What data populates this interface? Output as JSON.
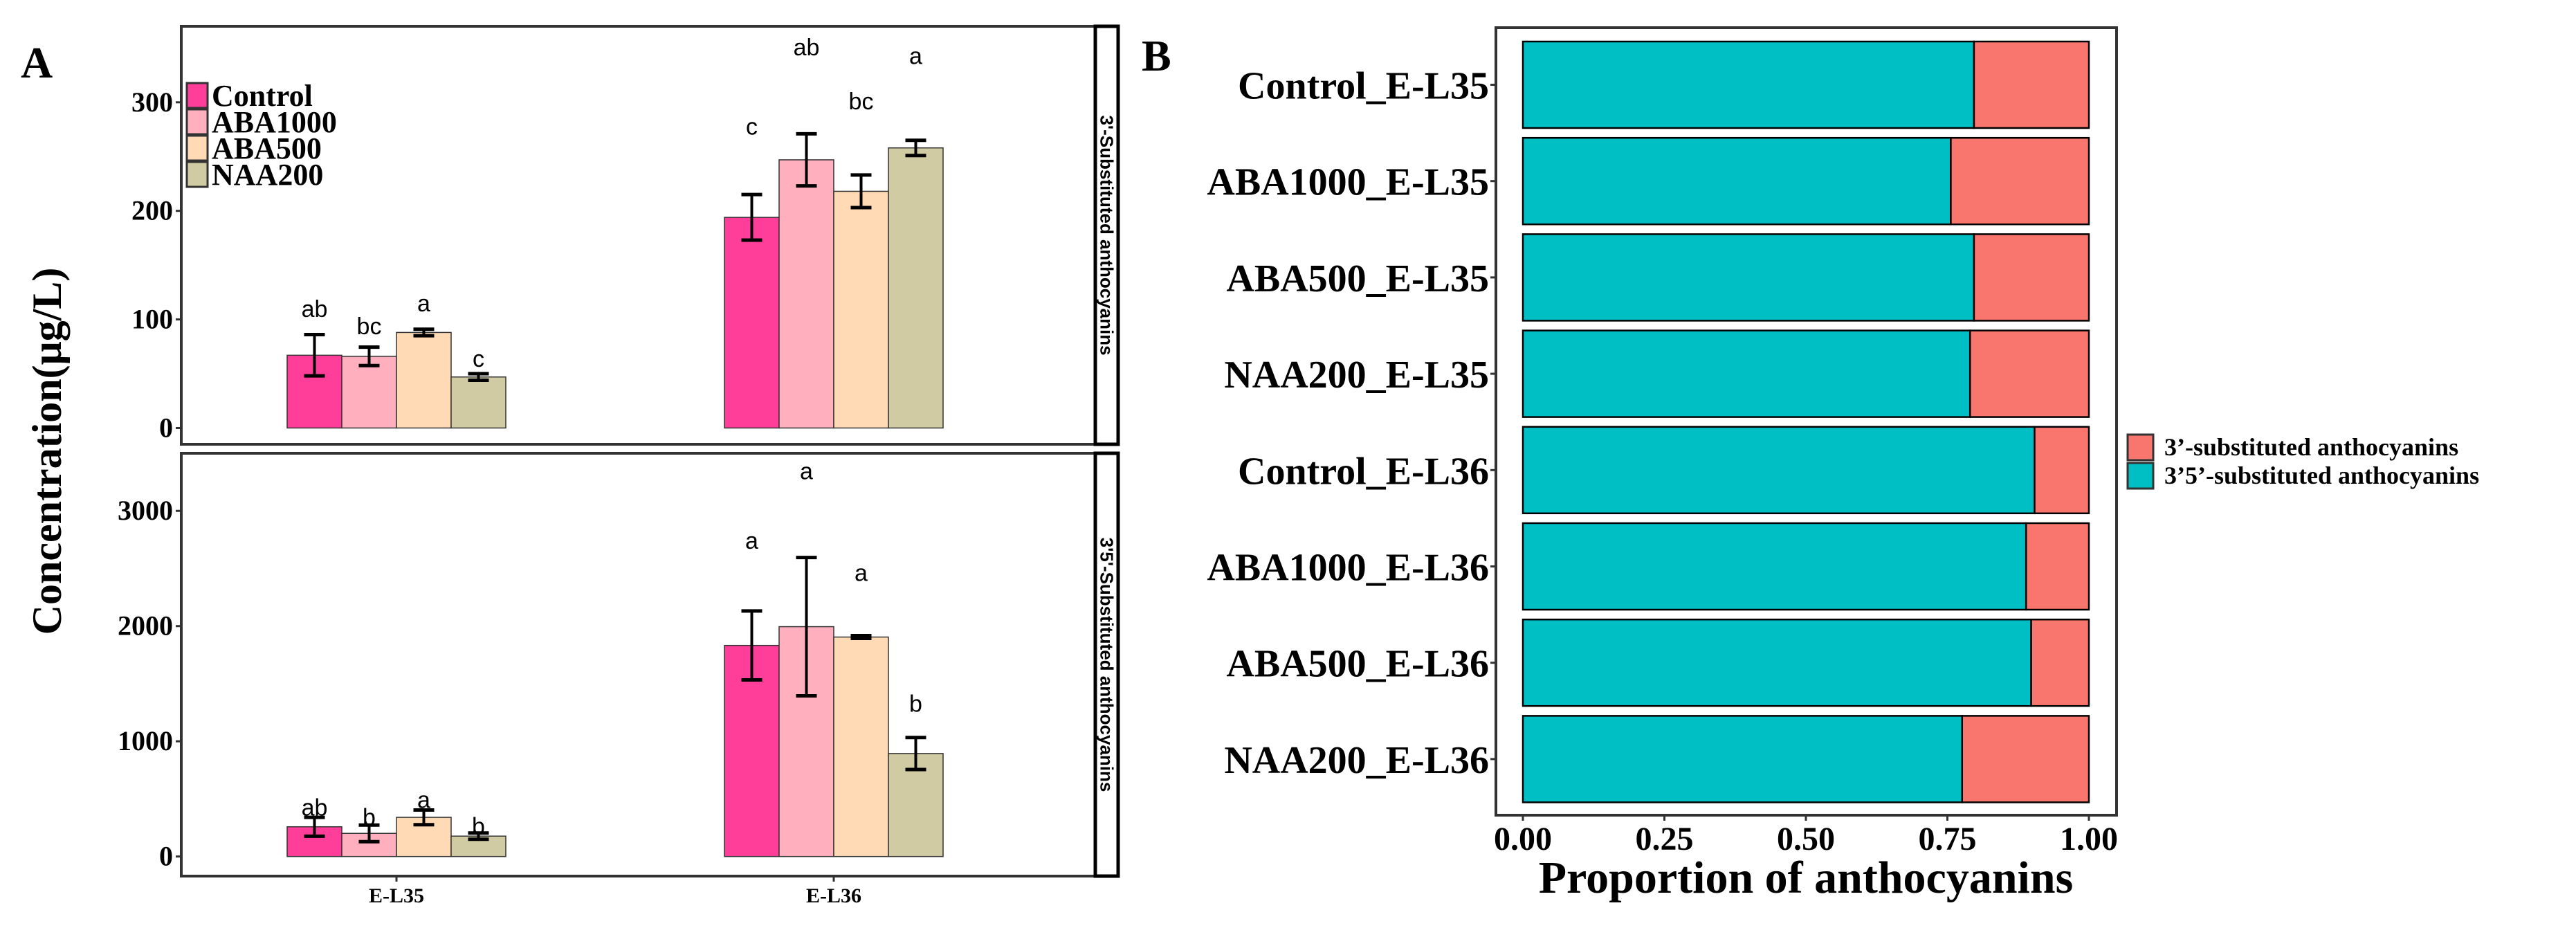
{
  "chart_data": [
    {
      "panel_label": "A",
      "type": "bar",
      "ylabel": "Concentration(μg/L)",
      "categories": [
        "E-L35",
        "E-L36"
      ],
      "legend": {
        "placement": "top-left",
        "entries": [
          "Control",
          "ABA1000",
          "ABA500",
          "NAA200"
        ]
      },
      "colors": {
        "Control": "#FF3E9A",
        "ABA1000": "#FFAFBD",
        "ABA500": "#FFDAB5",
        "NAA200": "#D0CBA2"
      },
      "facets": [
        {
          "strip": "3'-Substituted anthocyanins",
          "ylim": [
            -15,
            370
          ],
          "yticks": [
            0,
            100,
            200,
            300
          ],
          "series": [
            {
              "name": "Control",
              "values": [
                67,
                194
              ],
              "errors": [
                19,
                21
              ],
              "letters": [
                "ab",
                "c"
              ],
              "letter_y": [
                110,
                278
              ]
            },
            {
              "name": "ABA1000",
              "values": [
                66,
                247
              ],
              "errors": [
                8.5,
                24
              ],
              "letters": [
                "bc",
                "ab"
              ],
              "letter_y": [
                94,
                351
              ]
            },
            {
              "name": "ABA500",
              "values": [
                88,
                218
              ],
              "errors": [
                3,
                15
              ],
              "letters": [
                "a",
                "bc"
              ],
              "letter_y": [
                115,
                301
              ]
            },
            {
              "name": "NAA200",
              "values": [
                47,
                258
              ],
              "errors": [
                3,
                7
              ],
              "letters": [
                "c",
                "a"
              ],
              "letter_y": [
                64,
                343
              ]
            }
          ]
        },
        {
          "strip": "3'5'-Substituted anthocyanins",
          "ylim": [
            -170,
            3500
          ],
          "yticks": [
            0,
            1000,
            2000,
            3000
          ],
          "series": [
            {
              "name": "Control",
              "values": [
                258,
                1832
              ],
              "errors": [
                82,
                299
              ],
              "letters": [
                "ab",
                "a"
              ],
              "letter_y": [
                427,
                2742
              ]
            },
            {
              "name": "ABA1000",
              "values": [
                201,
                1995
              ],
              "errors": [
                72,
                600
              ],
              "letters": [
                "b",
                "a"
              ],
              "letter_y": [
                345,
                3348
              ]
            },
            {
              "name": "ABA500",
              "values": [
                340,
                1905
              ],
              "errors": [
                64,
                12
              ],
              "letters": [
                "a",
                "a"
              ],
              "letter_y": [
                495,
                2465
              ]
            },
            {
              "name": "NAA200",
              "values": [
                177,
                894
              ],
              "errors": [
                27,
                139
              ],
              "letters": [
                "b",
                "b"
              ],
              "letter_y": [
                264,
                1329
              ]
            }
          ]
        }
      ]
    },
    {
      "panel_label": "B",
      "type": "bar",
      "orientation": "horizontal-stacked",
      "xlabel": "Proportion of anthocyanins",
      "xlim": [
        0,
        1
      ],
      "xticks": [
        "0.00",
        "0.25",
        "0.50",
        "0.75",
        "1.00"
      ],
      "categories": [
        "Control_E-L35",
        "ABA1000_E-L35",
        "ABA500_E-L35",
        "NAA200_E-L35",
        "Control_E-L36",
        "ABA1000_E-L36",
        "ABA500_E-L36",
        "NAA200_E-L36"
      ],
      "legend": {
        "placement": "right"
      },
      "series": [
        {
          "name": "3’5’-substituted anthocyanins",
          "color": "#00BFC4",
          "values": [
            0.797,
            0.756,
            0.797,
            0.79,
            0.904,
            0.889,
            0.898,
            0.776
          ]
        },
        {
          "name": "3’-substituted anthocyanins",
          "color": "#F8766D",
          "values": [
            0.203,
            0.244,
            0.203,
            0.21,
            0.096,
            0.111,
            0.102,
            0.224
          ]
        }
      ]
    }
  ]
}
